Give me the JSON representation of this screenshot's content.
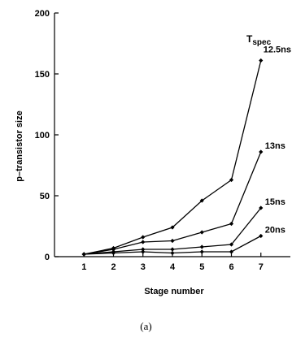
{
  "caption": "(a)",
  "chart_data": {
    "type": "line",
    "title": "",
    "xlabel": "Stage number",
    "ylabel": "p–transistor size",
    "xlim": [
      0,
      8
    ],
    "ylim": [
      0,
      200
    ],
    "x_ticks": [
      1,
      2,
      3,
      4,
      5,
      6,
      7
    ],
    "y_ticks": [
      0,
      50,
      100,
      150,
      200
    ],
    "grid": false,
    "legend_title": "T",
    "legend_title_sub": "spec",
    "x": [
      1,
      2,
      3,
      4,
      5,
      6,
      7
    ],
    "series": [
      {
        "name": "12.5ns",
        "values": [
          2,
          7,
          16,
          24,
          46,
          63,
          161
        ]
      },
      {
        "name": "13ns",
        "values": [
          2,
          6,
          12,
          13,
          20,
          27,
          86
        ]
      },
      {
        "name": "15ns",
        "values": [
          2,
          4,
          6,
          6,
          8,
          10,
          40
        ]
      },
      {
        "name": "20ns",
        "values": [
          2,
          3,
          4,
          3,
          4,
          4,
          17
        ]
      }
    ]
  }
}
